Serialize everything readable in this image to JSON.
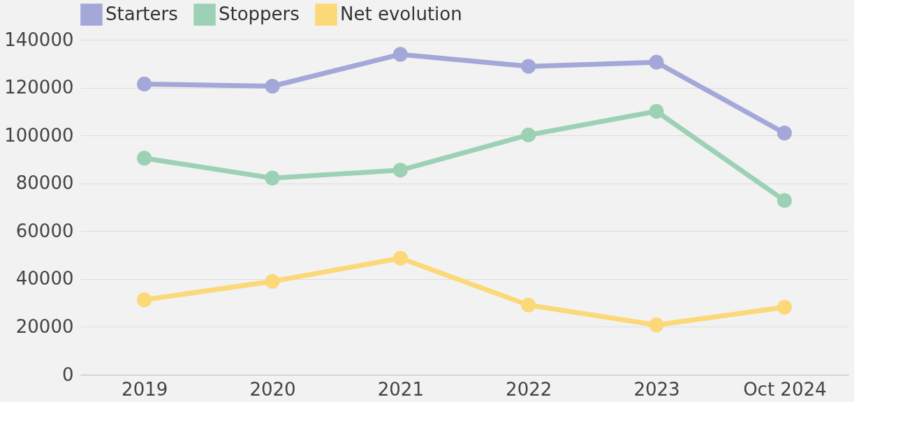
{
  "chart_data": {
    "type": "line",
    "categories": [
      "2019",
      "2020",
      "2021",
      "2022",
      "2023",
      "Oct 2024"
    ],
    "series": [
      {
        "name": "Starters",
        "color": "#a3a8d8",
        "values": [
          121500,
          120600,
          133900,
          128900,
          130600,
          101000
        ]
      },
      {
        "name": "Stoppers",
        "color": "#9dd1b6",
        "values": [
          90500,
          82200,
          85500,
          100200,
          110100,
          72800
        ]
      },
      {
        "name": "Net evolution",
        "color": "#fbd878",
        "values": [
          31300,
          39000,
          48700,
          29100,
          20800,
          28200
        ]
      }
    ],
    "ylim": [
      0,
      140000
    ],
    "yticks": [
      0,
      20000,
      40000,
      60000,
      80000,
      100000,
      120000,
      140000
    ],
    "grid": "y",
    "legend": "top",
    "marker": "circle",
    "line_style": "solid"
  }
}
